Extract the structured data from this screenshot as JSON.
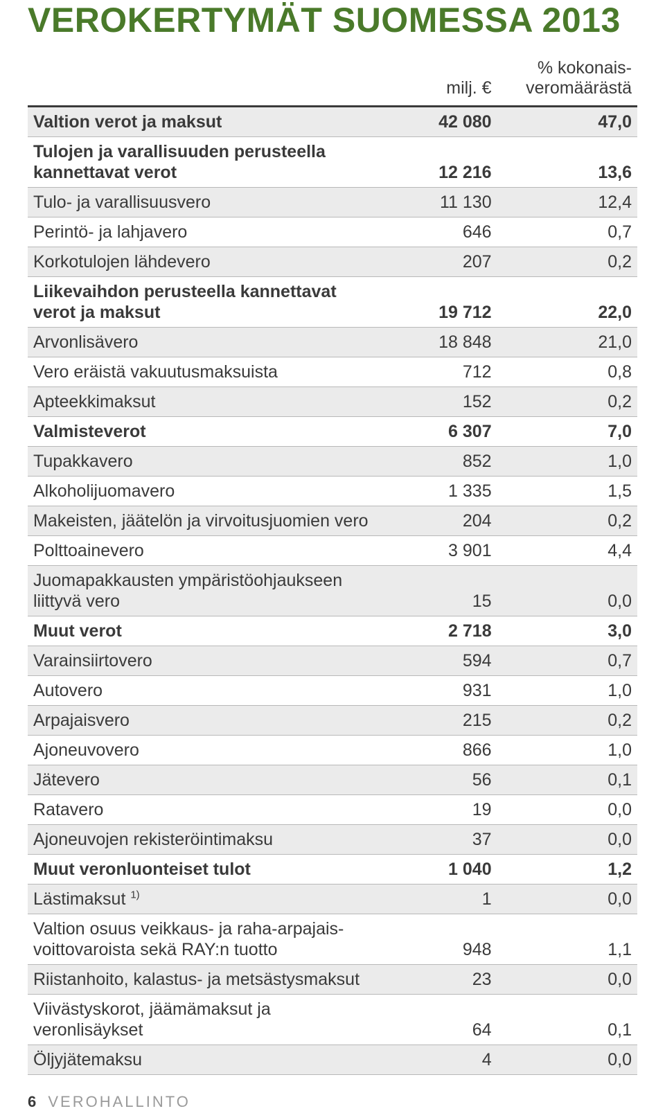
{
  "title": "VEROKERTYMÄT SUOMESSA 2013",
  "title_color": "#4a7a2a",
  "columns": {
    "c1": "milj. €",
    "c2_line1": "% kokonais-",
    "c2_line2": "veromäärästä"
  },
  "table": {
    "row_bg_odd": "#ebebeb",
    "row_bg_even": "#ffffff",
    "header_border": "#3a3a3a",
    "row_border": "#b8b8b8",
    "fontsize": 25
  },
  "rows": [
    {
      "label": "Valtion verot ja maksut",
      "v1": "42 080",
      "v2": "47,0",
      "bold": true
    },
    {
      "label": "Tulojen ja varallisuuden perusteella kannettavat verot",
      "v1": "12 216",
      "v2": "13,6",
      "bold": true
    },
    {
      "label": "Tulo- ja varallisuusvero",
      "v1": "11 130",
      "v2": "12,4"
    },
    {
      "label": "Perintö- ja lahjavero",
      "v1": "646",
      "v2": "0,7"
    },
    {
      "label": "Korkotulojen lähdevero",
      "v1": "207",
      "v2": "0,2"
    },
    {
      "label": "Liikevaihdon perusteella kannettavat verot ja maksut",
      "v1": "19 712",
      "v2": "22,0",
      "bold": true
    },
    {
      "label": "Arvonlisävero",
      "v1": "18 848",
      "v2": "21,0"
    },
    {
      "label": "Vero eräistä vakuutusmaksuista",
      "v1": "712",
      "v2": "0,8"
    },
    {
      "label": "Apteekkimaksut",
      "v1": "152",
      "v2": "0,2"
    },
    {
      "label": "Valmisteverot",
      "v1": "6 307",
      "v2": "7,0",
      "bold": true
    },
    {
      "label": "Tupakkavero",
      "v1": "852",
      "v2": "1,0"
    },
    {
      "label": "Alkoholijuomavero",
      "v1": "1 335",
      "v2": "1,5"
    },
    {
      "label": "Makeisten, jäätelön ja virvoitusjuomien vero",
      "v1": "204",
      "v2": "0,2"
    },
    {
      "label": "Polttoainevero",
      "v1": "3 901",
      "v2": "4,4"
    },
    {
      "label": "Juomapakkausten ympäristöohjaukseen liittyvä vero",
      "v1": "15",
      "v2": "0,0"
    },
    {
      "label": "Muut verot",
      "v1": "2 718",
      "v2": "3,0",
      "bold": true
    },
    {
      "label": "Varainsiirtovero",
      "v1": "594",
      "v2": "0,7"
    },
    {
      "label": "Autovero",
      "v1": "931",
      "v2": "1,0"
    },
    {
      "label": "Arpajaisvero",
      "v1": "215",
      "v2": "0,2"
    },
    {
      "label": "Ajoneuvovero",
      "v1": "866",
      "v2": "1,0"
    },
    {
      "label": "Jätevero",
      "v1": "56",
      "v2": "0,1"
    },
    {
      "label": "Ratavero",
      "v1": "19",
      "v2": "0,0"
    },
    {
      "label": "Ajoneuvojen rekisteröintimaksu",
      "v1": "37",
      "v2": "0,0"
    },
    {
      "label": "Muut veronluonteiset tulot",
      "v1": "1 040",
      "v2": "1,2",
      "bold": true
    },
    {
      "label": "Lästimaksut ",
      "sup": "1)",
      "v1": "1",
      "v2": "0,0"
    },
    {
      "label": "Valtion osuus veikkaus- ja raha-arpajais­voittovaroista sekä RAY:n tuotto",
      "v1": "948",
      "v2": "1,1"
    },
    {
      "label": "Riistanhoito, kalastus- ja metsästysmaksut",
      "v1": "23",
      "v2": "0,0"
    },
    {
      "label": "Viivästyskorot, jäämämaksut ja veronlisäykset",
      "v1": "64",
      "v2": "0,1"
    },
    {
      "label": "Öljyjätemaksu",
      "v1": "4",
      "v2": "0,0"
    }
  ],
  "footer": {
    "page": "6",
    "text": "VEROHALLINTO"
  }
}
